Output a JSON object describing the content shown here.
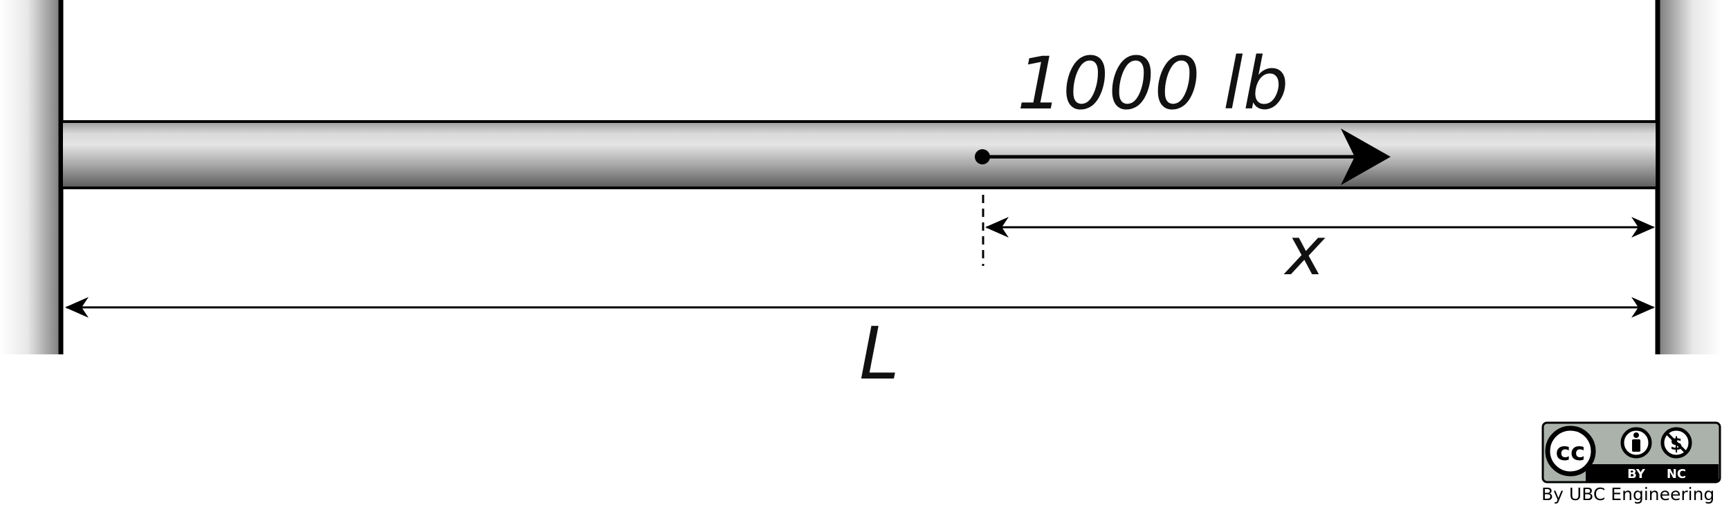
{
  "diagram": {
    "load_label": "1000 lb",
    "distance_x_label": "x",
    "length_label": "L"
  },
  "license": {
    "cc_symbol": "cc",
    "by_label": "BY",
    "nc_label": "NC",
    "caption": "By UBC Engineering",
    "icons": [
      "cc-icon",
      "person-icon",
      "non-commercial-icon"
    ]
  }
}
